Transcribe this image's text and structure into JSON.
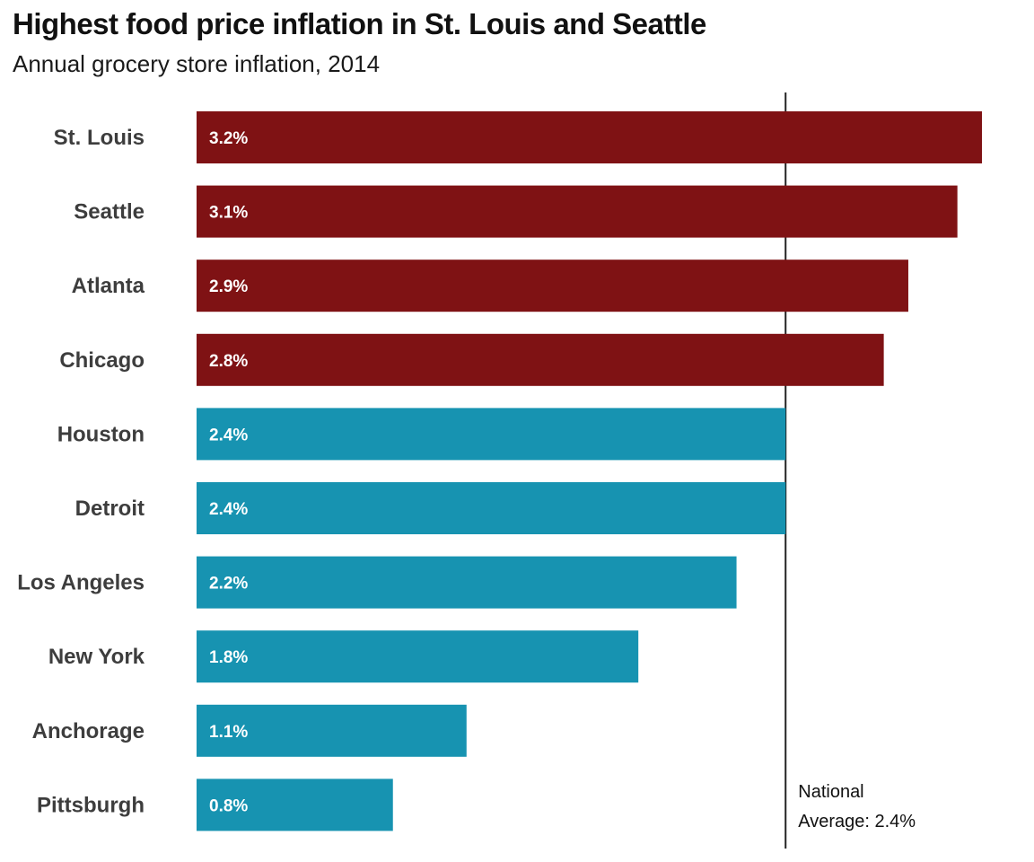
{
  "chart_data": {
    "type": "bar",
    "orientation": "horizontal",
    "title": "Highest food price inflation in St. Louis and Seattle",
    "subtitle": "Annual grocery store inflation, 2014",
    "xlabel": "",
    "ylabel": "",
    "unit": "%",
    "xlim": [
      0,
      3.2
    ],
    "grid": false,
    "categories": [
      "St. Louis",
      "Seattle",
      "Atlanta",
      "Chicago",
      "Houston",
      "Detroit",
      "Los Angeles",
      "New York",
      "Anchorage",
      "Pittsburgh"
    ],
    "values": [
      3.2,
      3.1,
      2.9,
      2.8,
      2.4,
      2.4,
      2.2,
      1.8,
      1.1,
      0.8
    ],
    "value_labels": [
      "3.2%",
      "3.1%",
      "2.9%",
      "2.8%",
      "2.4%",
      "2.4%",
      "2.2%",
      "1.8%",
      "1.1%",
      "0.8%"
    ],
    "colors": {
      "above_average": "#7f1214",
      "at_or_below_average": "#1793b1",
      "reference_line": "#222222"
    },
    "reference_line": {
      "value": 2.4,
      "label_lines": [
        "National",
        "Average: 2.4%"
      ]
    }
  }
}
